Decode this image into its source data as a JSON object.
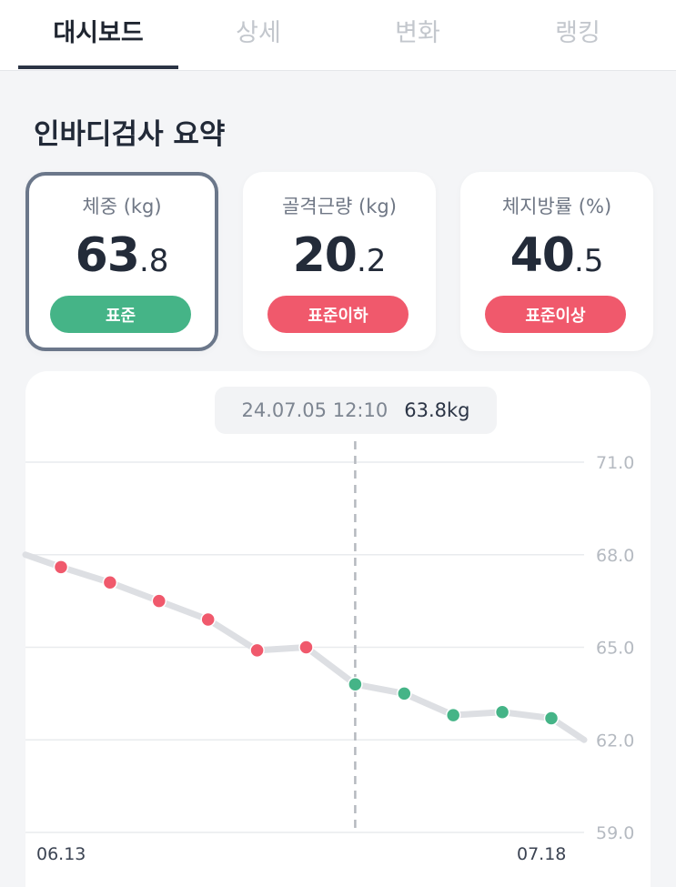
{
  "tabs": [
    {
      "label": "대시보드",
      "active": true
    },
    {
      "label": "상세",
      "active": false
    },
    {
      "label": "변화",
      "active": false
    },
    {
      "label": "랭킹",
      "active": false
    }
  ],
  "summary": {
    "title": "인바디검사 요약",
    "cards": [
      {
        "label": "체중 (kg)",
        "int": "63",
        "dec": ".8",
        "status": "표준",
        "status_color": "#45b487",
        "selected": true
      },
      {
        "label": "골격근량 (kg)",
        "int": "20",
        "dec": ".2",
        "status": "표준이하",
        "status_color": "#f0596c",
        "selected": false
      },
      {
        "label": "체지방률 (%)",
        "int": "40",
        "dec": ".5",
        "status": "표준이상",
        "status_color": "#f0596c",
        "selected": false
      }
    ]
  },
  "tooltip": {
    "date": "24.07.05 12:10",
    "value": "63.8kg"
  },
  "chart_data": {
    "type": "line",
    "metric": "체중 (kg)",
    "y_ticks": [
      "71.0",
      "68.0",
      "65.0",
      "62.0",
      "59.0"
    ],
    "ylim": [
      59.0,
      71.0
    ],
    "x_tick_labels": [
      "06.13",
      "07.18"
    ],
    "line_start_value": 68.0,
    "line_end_value": 62.0,
    "points": [
      {
        "value": 67.6,
        "status": "over"
      },
      {
        "value": 67.1,
        "status": "over"
      },
      {
        "value": 66.5,
        "status": "over"
      },
      {
        "value": 65.9,
        "status": "over"
      },
      {
        "value": 64.9,
        "status": "over"
      },
      {
        "value": 65.0,
        "status": "over"
      },
      {
        "value": 63.8,
        "status": "normal"
      },
      {
        "value": 63.5,
        "status": "normal"
      },
      {
        "value": 62.8,
        "status": "normal"
      },
      {
        "value": 62.9,
        "status": "normal"
      },
      {
        "value": 62.7,
        "status": "normal"
      }
    ],
    "selected_index": 6,
    "colors": {
      "over": "#f0596c",
      "normal": "#45b487",
      "line": "#dddfe3",
      "grid": "#e9ebee",
      "label": "#b5bac1",
      "crosshair": "#b5b9bf"
    }
  }
}
